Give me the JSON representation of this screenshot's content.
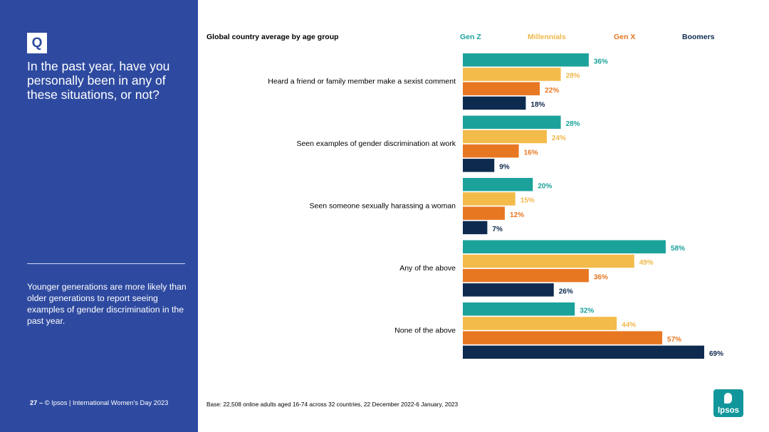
{
  "sidebar": {
    "badge": "Q",
    "question": "In the past year, have you personally been in any of these situations, or not?",
    "takeaway": "Younger generations are more likely than older generations to report seeing examples of gender discrimination in the past year.",
    "page_number": "27",
    "footer": "© Ipsos | International Women's Day 2023"
  },
  "chart_title": "Global country average by age group",
  "base_note": "Base: 22,508 online adults aged 16-74 across 32 countries, 22 December 2022-6 January, 2023",
  "logo_text": "Ipsos",
  "chart_data": {
    "type": "bar",
    "orientation": "horizontal",
    "title": "Global country average by age group",
    "value_suffix": "%",
    "legend_position": "top",
    "categories": [
      "Heard a friend or family member make a sexist comment",
      "Seen examples of gender discrimination at work",
      "Seen someone sexually harassing a woman",
      "Any of the above",
      "None of the above"
    ],
    "series": [
      {
        "name": "Gen Z",
        "color": "#1ba29b",
        "label_color": "#1ba29b",
        "values": [
          36,
          28,
          20,
          58,
          32
        ]
      },
      {
        "name": "Millennials",
        "color": "#f3bb4a",
        "label_color": "#f0b84a",
        "values": [
          28,
          24,
          15,
          49,
          44
        ]
      },
      {
        "name": "Gen X",
        "color": "#e87722",
        "label_color": "#e87722",
        "values": [
          22,
          16,
          12,
          36,
          57
        ]
      },
      {
        "name": "Boomers",
        "color": "#0e2a4f",
        "label_color": "#0e2a4f",
        "values": [
          18,
          9,
          7,
          26,
          69
        ]
      }
    ],
    "xlim": [
      0,
      70
    ]
  }
}
